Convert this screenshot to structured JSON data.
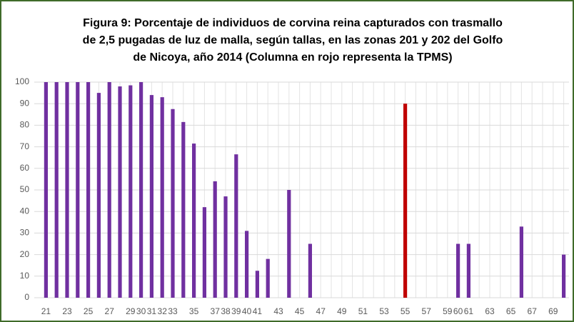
{
  "chart_data": {
    "type": "bar",
    "title": [
      "Figura 9: Porcentaje de individuos de corvina reina capturados con trasmallo",
      "de 2,5 pugadas de luz de malla, según tallas, en las zonas 201 y 202 del Golfo",
      "de Nicoya, año 2014 (Columna en rojo representa la TPMS)"
    ],
    "categories": [
      "21",
      null,
      "23",
      null,
      "25",
      null,
      "27",
      null,
      "29",
      "30",
      "31",
      "32",
      "33",
      null,
      "35",
      null,
      "37",
      "38",
      "39",
      "40",
      "41",
      null,
      "43",
      null,
      "45",
      null,
      "47",
      null,
      "49",
      null,
      "51",
      null,
      "53",
      null,
      "55",
      null,
      "57",
      null,
      "59",
      "60",
      "61",
      null,
      "63",
      null,
      "65",
      null,
      "67",
      null,
      "69",
      null
    ],
    "values": [
      100,
      100,
      100,
      100,
      100,
      95,
      100,
      98,
      98.5,
      100,
      94,
      93,
      87.5,
      81.5,
      71.5,
      42,
      54,
      47,
      66.5,
      31,
      12.5,
      18,
      null,
      50,
      null,
      25,
      null,
      null,
      null,
      null,
      null,
      null,
      null,
      null,
      90,
      null,
      null,
      null,
      null,
      25,
      25,
      null,
      null,
      null,
      null,
      33,
      null,
      null,
      null,
      20
    ],
    "colors": [
      "#7030a0",
      "#7030a0",
      "#7030a0",
      "#7030a0",
      "#7030a0",
      "#7030a0",
      "#7030a0",
      "#7030a0",
      "#7030a0",
      "#7030a0",
      "#7030a0",
      "#7030a0",
      "#7030a0",
      "#7030a0",
      "#7030a0",
      "#7030a0",
      "#7030a0",
      "#7030a0",
      "#7030a0",
      "#7030a0",
      "#7030a0",
      "#7030a0",
      "#7030a0",
      "#7030a0",
      "#7030a0",
      "#7030a0",
      "#7030a0",
      "#7030a0",
      "#7030a0",
      "#7030a0",
      "#7030a0",
      "#7030a0",
      "#7030a0",
      "#7030a0",
      "#c00000",
      "#7030a0",
      "#7030a0",
      "#7030a0",
      "#7030a0",
      "#7030a0",
      "#7030a0",
      "#7030a0",
      "#7030a0",
      "#7030a0",
      "#7030a0",
      "#7030a0",
      "#7030a0",
      "#7030a0",
      "#7030a0",
      "#7030a0"
    ],
    "ylim": [
      0,
      100
    ],
    "yticks": [
      0,
      10,
      20,
      30,
      40,
      50,
      60,
      70,
      80,
      90,
      100
    ],
    "grid": true
  }
}
